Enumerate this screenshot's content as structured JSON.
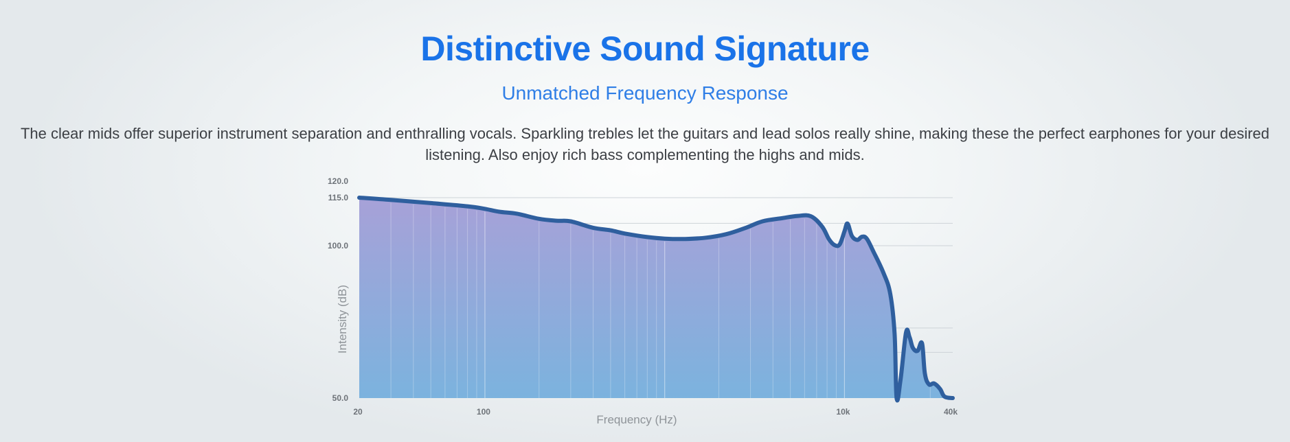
{
  "header": {
    "title": "Distinctive Sound Signature",
    "subtitle": "Unmatched Frequency Response",
    "description": "The clear mids offer superior instrument separation and enthralling vocals. Sparkling trebles let the guitars and lead solos really shine, making these the perfect earphones for your desired listening. Also enjoy rich bass complementing the highs and mids."
  },
  "colors": {
    "title": "#1a73e8",
    "subtitle": "#2f7ee6",
    "line": "#2f5f9e",
    "fill_top": "#a7a1d8",
    "fill_bottom": "#7bb3de"
  },
  "chart_data": {
    "type": "area",
    "xlabel": "Frequency (Hz)",
    "ylabel": "Intensity (dB)",
    "x_scale": "log",
    "xlim": [
      20,
      40000
    ],
    "ylim": [
      50,
      120
    ],
    "x_ticks": [
      {
        "value": 20,
        "label": "20"
      },
      {
        "value": 100,
        "label": "100"
      },
      {
        "value": 10000,
        "label": "10k"
      },
      {
        "value": 40000,
        "label": "40k"
      }
    ],
    "y_ticks": [
      {
        "value": 120,
        "label": "120.0"
      },
      {
        "value": 115,
        "label": "115.0"
      },
      {
        "value": 100,
        "label": "100.0"
      },
      {
        "value": 50,
        "label": "50.0"
      }
    ],
    "grid": true,
    "series": [
      {
        "points": [
          [
            20,
            115.0
          ],
          [
            30,
            114.3
          ],
          [
            50,
            113.3
          ],
          [
            80,
            112.3
          ],
          [
            100,
            111.5
          ],
          [
            120,
            110.6
          ],
          [
            150,
            110.0
          ],
          [
            200,
            108.4
          ],
          [
            250,
            107.8
          ],
          [
            300,
            107.6
          ],
          [
            400,
            105.6
          ],
          [
            500,
            104.8
          ],
          [
            600,
            103.8
          ],
          [
            800,
            102.7
          ],
          [
            1000,
            102.2
          ],
          [
            1300,
            102.1
          ],
          [
            1700,
            102.5
          ],
          [
            2200,
            103.6
          ],
          [
            2800,
            105.5
          ],
          [
            3500,
            107.6
          ],
          [
            4500,
            108.6
          ],
          [
            5500,
            109.3
          ],
          [
            6500,
            109.2
          ],
          [
            7500,
            106.0
          ],
          [
            8200,
            102.0
          ],
          [
            8800,
            100.2
          ],
          [
            9400,
            100.4
          ],
          [
            10000,
            104.5
          ],
          [
            10400,
            106.9
          ],
          [
            11000,
            103.0
          ],
          [
            11800,
            101.8
          ],
          [
            12500,
            102.8
          ],
          [
            13300,
            102.2
          ],
          [
            14500,
            98.0
          ],
          [
            16500,
            91.0
          ],
          [
            18000,
            84.0
          ],
          [
            19000,
            71.0
          ],
          [
            19500,
            50.0
          ],
          [
            20500,
            56.0
          ],
          [
            22000,
            71.5
          ],
          [
            23000,
            70.0
          ],
          [
            24000,
            66.5
          ],
          [
            25500,
            65.5
          ],
          [
            27000,
            68.0
          ],
          [
            28000,
            58.0
          ],
          [
            29500,
            54.5
          ],
          [
            31500,
            54.8
          ],
          [
            34000,
            53.0
          ],
          [
            36000,
            50.5
          ],
          [
            40000,
            50.0
          ]
        ]
      }
    ]
  }
}
